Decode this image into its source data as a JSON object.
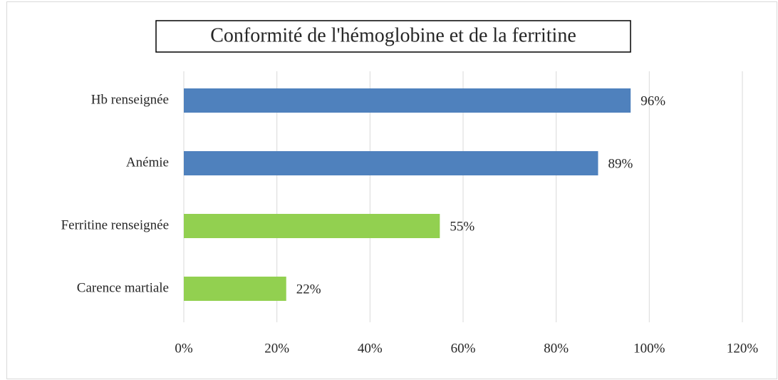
{
  "chart_data": {
    "type": "bar",
    "orientation": "horizontal",
    "title": "Conformité de l'hémoglobine et de la ferritine",
    "categories": [
      "Hb renseignée",
      "Anémie",
      "Ferritine renseignée",
      "Carence martiale"
    ],
    "values": [
      96,
      89,
      55,
      22
    ],
    "value_labels": [
      "96%",
      "89%",
      "55%",
      "22%"
    ],
    "colors": [
      "#4f81bd",
      "#4f81bd",
      "#92d050",
      "#92d050"
    ],
    "xlim": [
      0,
      120
    ],
    "xticks": [
      {
        "value": 0,
        "label": "0%"
      },
      {
        "value": 20,
        "label": "20%"
      },
      {
        "value": 40,
        "label": "40%"
      },
      {
        "value": 60,
        "label": "60%"
      },
      {
        "value": 80,
        "label": "80%"
      },
      {
        "value": 100,
        "label": "100%"
      },
      {
        "value": 120,
        "label": "120%"
      }
    ],
    "grid": true
  }
}
